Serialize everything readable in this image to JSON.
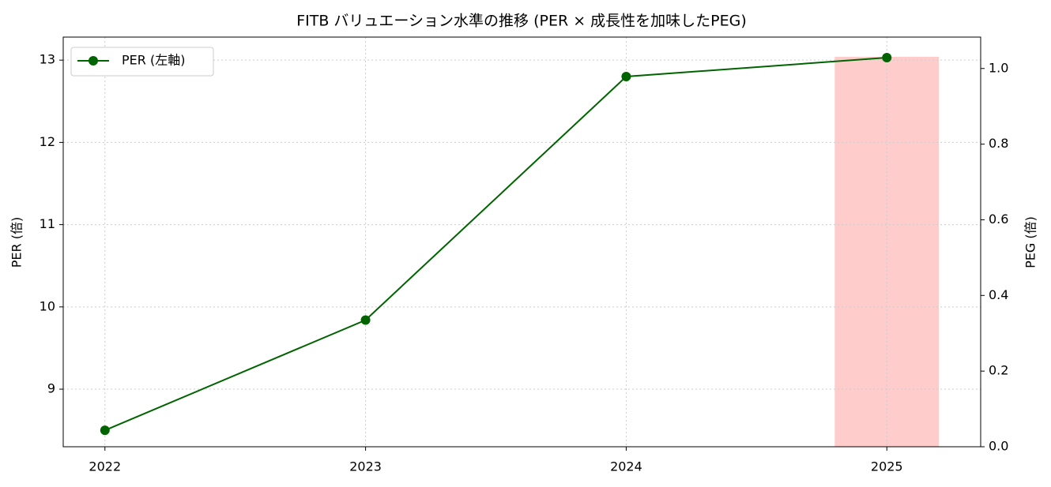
{
  "chart_data": {
    "type": "line",
    "title": "FITB バリュエーション水準の推移 (PER × 成長性を加味したPEG)",
    "x": [
      2022,
      2023,
      2024,
      2025
    ],
    "xlim": [
      2021.84,
      2025.36
    ],
    "xticks": [
      2022,
      2023,
      2024,
      2025
    ],
    "ylabel": "PER (倍)",
    "ylim": [
      8.3,
      13.28
    ],
    "yticks": [
      9,
      10,
      11,
      12,
      13
    ],
    "y2label": "PEG (倍)",
    "y2lim": [
      0,
      1.083
    ],
    "y2ticks": [
      {
        "value": 0,
        "label": "0.0"
      },
      0.2,
      0.4,
      0.6,
      0.8,
      {
        "value": 1,
        "label": "1.0"
      }
    ],
    "grid": true,
    "legend": "upper left",
    "series": [
      {
        "name": "PER (左軸)",
        "color": "#006400",
        "values": [
          8.5,
          9.84,
          12.8,
          13.03
        ]
      },
      {
        "type": "bar",
        "axis": "y2",
        "color": "#ffcccc",
        "x": [
          2025
        ],
        "values": [
          1.031
        ]
      }
    ]
  }
}
